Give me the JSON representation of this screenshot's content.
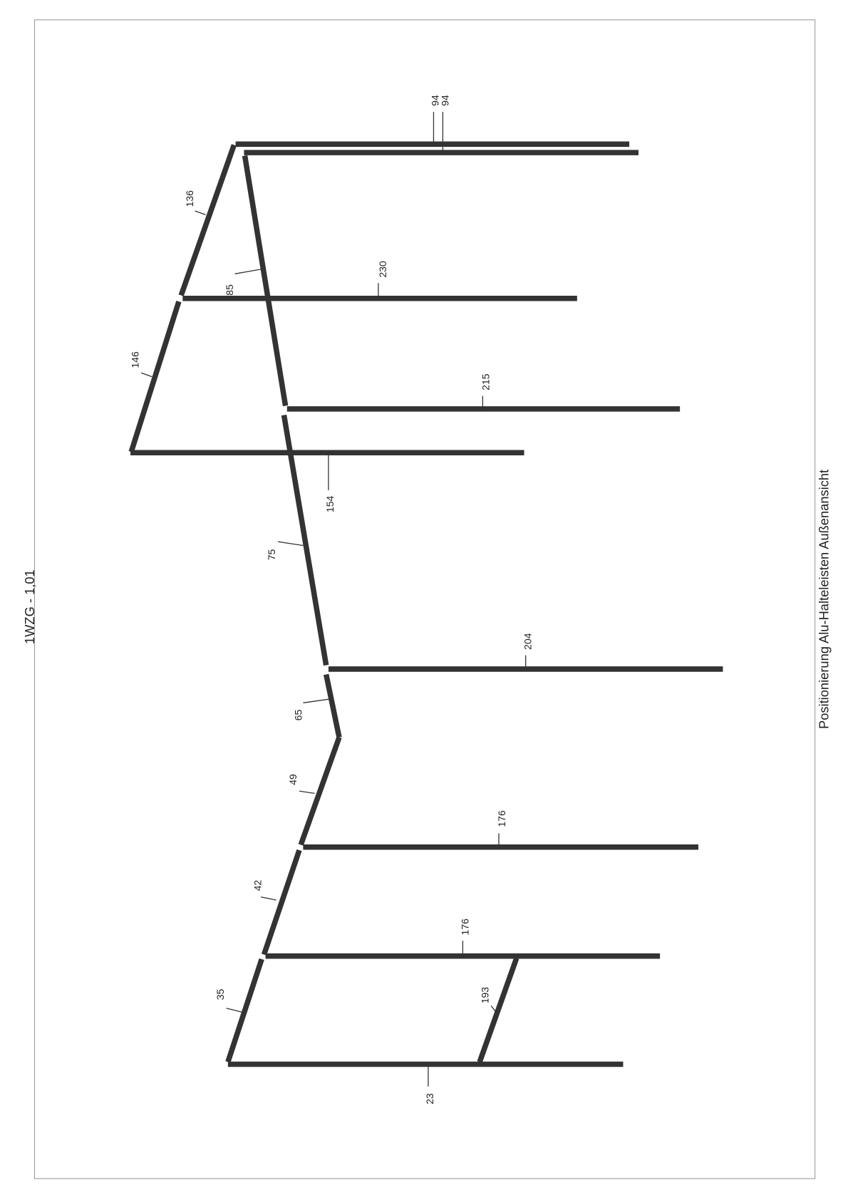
{
  "title": "1WZG - 1,01",
  "caption": "Positionierung Alu-Halteleisten Außenansicht",
  "labels": [
    "94",
    "94",
    "136",
    "230",
    "85",
    "215",
    "146",
    "154",
    "75",
    "204",
    "65",
    "49",
    "176",
    "42",
    "176",
    "35",
    "193",
    "23"
  ]
}
